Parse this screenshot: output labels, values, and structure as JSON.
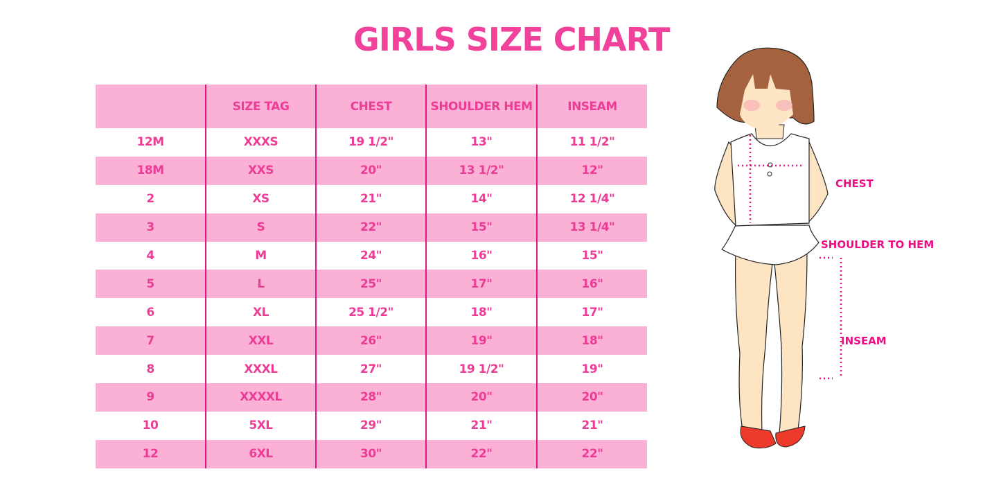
{
  "title": "GIRLS SIZE CHART",
  "table": {
    "headers": [
      "",
      "SIZE TAG",
      "CHEST",
      "SHOULDER HEM",
      "INSEAM"
    ],
    "rows": [
      [
        "12M",
        "XXXS",
        "19 1/2\"",
        "13\"",
        "11 1/2\""
      ],
      [
        "18M",
        "XXS",
        "20\"",
        "13 1/2\"",
        "12\""
      ],
      [
        "2",
        "XS",
        "21\"",
        "14\"",
        "12 1/4\""
      ],
      [
        "3",
        "S",
        "22\"",
        "15\"",
        "13 1/4\""
      ],
      [
        "4",
        "M",
        "24\"",
        "16\"",
        "15\""
      ],
      [
        "5",
        "L",
        "25\"",
        "17\"",
        "16\""
      ],
      [
        "6",
        "XL",
        "25 1/2\"",
        "18\"",
        "17\""
      ],
      [
        "7",
        "XXL",
        "26\"",
        "19\"",
        "18\""
      ],
      [
        "8",
        "XXXL",
        "27\"",
        "19 1/2\"",
        "19\""
      ],
      [
        "9",
        "XXXXL",
        "28\"",
        "20\"",
        "20\""
      ],
      [
        "10",
        "5XL",
        "29\"",
        "21\"",
        "21\""
      ],
      [
        "12",
        "6XL",
        "30\"",
        "22\"",
        "22\""
      ]
    ]
  },
  "figure": {
    "labels": {
      "chest": "CHEST",
      "shoulder_to_hem": "SHOULDER TO HEM",
      "inseam": "INSEAM"
    }
  },
  "colors": {
    "accent": "#ec3c96",
    "row_pink": "#fbb1d6",
    "divider": "#e0177f",
    "measure": "#ec0d84"
  }
}
